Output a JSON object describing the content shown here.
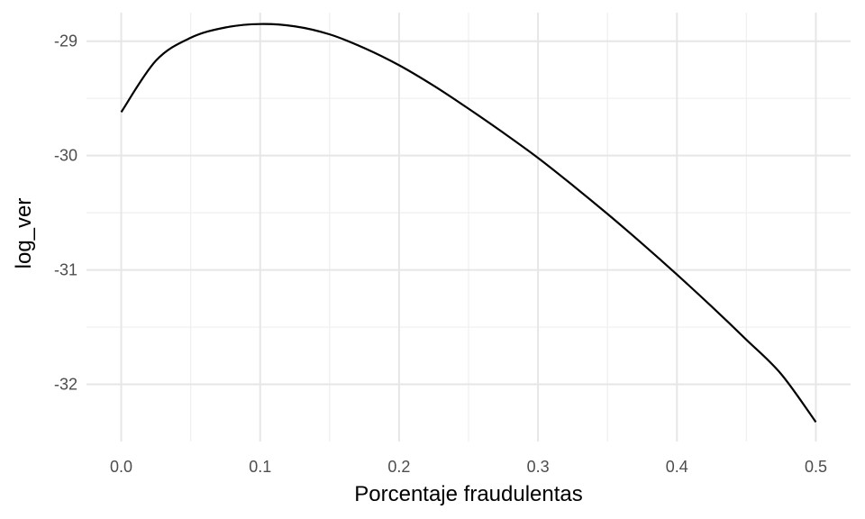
{
  "chart_data": {
    "type": "line",
    "title": "",
    "xlabel": "Porcentaje fraudulentas",
    "ylabel": "log_ver",
    "xlim": [
      -0.025,
      0.525
    ],
    "ylim": [
      -32.5,
      -28.75
    ],
    "x_ticks": [
      0.0,
      0.1,
      0.2,
      0.3,
      0.4,
      0.5
    ],
    "x_tick_labels": [
      "0.0",
      "0.1",
      "0.2",
      "0.3",
      "0.4",
      "0.5"
    ],
    "x_minor_ticks": [
      0.05,
      0.15,
      0.25,
      0.35,
      0.45
    ],
    "y_ticks": [
      -29,
      -30,
      -31,
      -32
    ],
    "y_tick_labels": [
      "-29",
      "-30",
      "-31",
      "-32"
    ],
    "y_minor_ticks": [
      -29.5,
      -30.5,
      -31.5
    ],
    "grid": true,
    "series": [
      {
        "color": "#000000",
        "x": [
          0.0,
          0.025,
          0.05,
          0.075,
          0.1,
          0.125,
          0.15,
          0.175,
          0.2,
          0.225,
          0.25,
          0.275,
          0.3,
          0.325,
          0.35,
          0.375,
          0.4,
          0.425,
          0.45,
          0.475,
          0.5
        ],
        "y": [
          -29.62,
          -29.17,
          -28.97,
          -28.88,
          -28.85,
          -28.87,
          -28.94,
          -29.06,
          -29.21,
          -29.39,
          -29.59,
          -29.8,
          -30.02,
          -30.26,
          -30.51,
          -30.77,
          -31.04,
          -31.32,
          -31.61,
          -31.91,
          -32.33
        ]
      }
    ]
  }
}
